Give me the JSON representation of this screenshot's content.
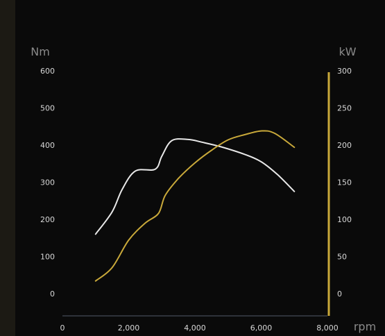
{
  "chart_data": {
    "type": "line",
    "title": "",
    "xlabel": "rpm",
    "ylabel_left": "Nm",
    "ylabel_right": "kW",
    "xlim": [
      0,
      8000
    ],
    "ylim_left": [
      -60,
      600
    ],
    "ylim_right": [
      -30,
      300
    ],
    "x_ticks": [
      0,
      2000,
      4000,
      6000,
      8000
    ],
    "x_tick_labels": [
      "0",
      "2,000",
      "4,000",
      "6,000",
      "8,000"
    ],
    "y_left_ticks": [
      0,
      100,
      200,
      300,
      400,
      500,
      600
    ],
    "y_left_tick_labels": [
      "0",
      "100",
      "200",
      "300",
      "400",
      "500",
      "600"
    ],
    "y_right_ticks": [
      0,
      50,
      100,
      150,
      200,
      250,
      300
    ],
    "y_right_tick_labels": [
      "0",
      "50",
      "100",
      "150",
      "200",
      "250",
      "300"
    ],
    "grid": false,
    "legend": "none",
    "series": [
      {
        "axis": "left",
        "color": "#e8e8e8",
        "x": [
          1000,
          1500,
          1800,
          2200,
          2800,
          3000,
          3300,
          3800,
          4200,
          4800,
          5500,
          6000,
          6500,
          7000
        ],
        "values": [
          160,
          220,
          280,
          330,
          335,
          370,
          412,
          415,
          408,
          395,
          375,
          355,
          320,
          275
        ]
      },
      {
        "axis": "right",
        "color": "#c9a93a",
        "x": [
          1000,
          1500,
          2000,
          2500,
          2900,
          3100,
          3500,
          4000,
          4500,
          5000,
          5500,
          6000,
          6400,
          7000
        ],
        "values": [
          17,
          35,
          72,
          95,
          108,
          132,
          155,
          176,
          193,
          207,
          214,
          219,
          216,
          197
        ]
      }
    ]
  },
  "colors": {
    "background": "#0a0a0a",
    "axis_right": "#c9a93a",
    "axis_bottom": "#3a3f4a"
  }
}
